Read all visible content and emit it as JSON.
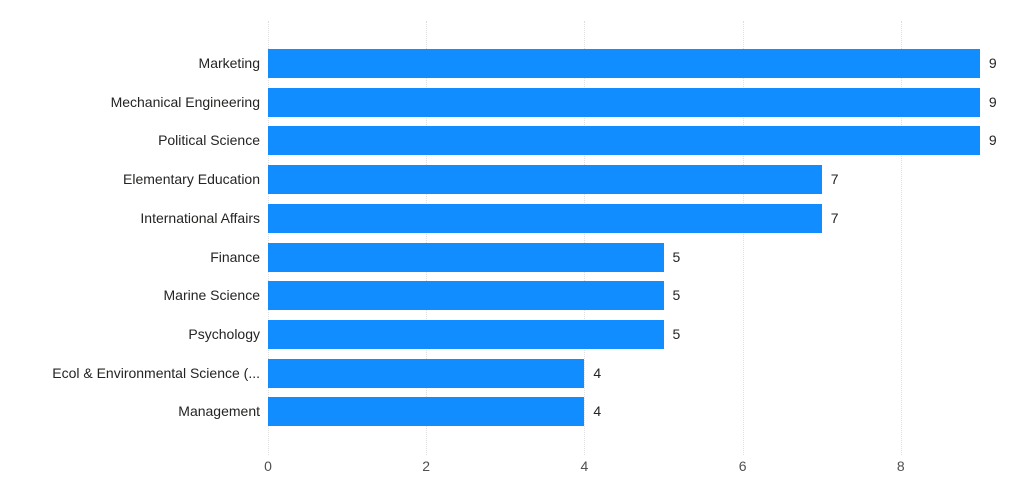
{
  "chart_data": {
    "type": "bar",
    "orientation": "horizontal",
    "title": "",
    "xlabel": "",
    "ylabel": "",
    "categories": [
      "Marketing",
      "Mechanical Engineering",
      "Political Science",
      "Elementary Education",
      "International Affairs",
      "Finance",
      "Marine Science",
      "Psychology",
      "Ecol & Environmental Science (...",
      "Management"
    ],
    "values": [
      9,
      9,
      9,
      7,
      7,
      5,
      5,
      5,
      4,
      4
    ],
    "data_labels": [
      "9",
      "9",
      "9",
      "7",
      "7",
      "5",
      "5",
      "5",
      "4",
      "4"
    ],
    "x_ticks": [
      0,
      2,
      4,
      6,
      8
    ],
    "x_tick_labels": [
      "0",
      "2",
      "4",
      "6",
      "8"
    ],
    "xlim": [
      0,
      9
    ],
    "grid": true,
    "legend": false,
    "colors": {
      "bar": "#118DFF",
      "category_label": "#252423",
      "value_label": "#252423",
      "tick_label": "#505050",
      "gridline": "#dedede",
      "background": "#ffffff"
    }
  }
}
